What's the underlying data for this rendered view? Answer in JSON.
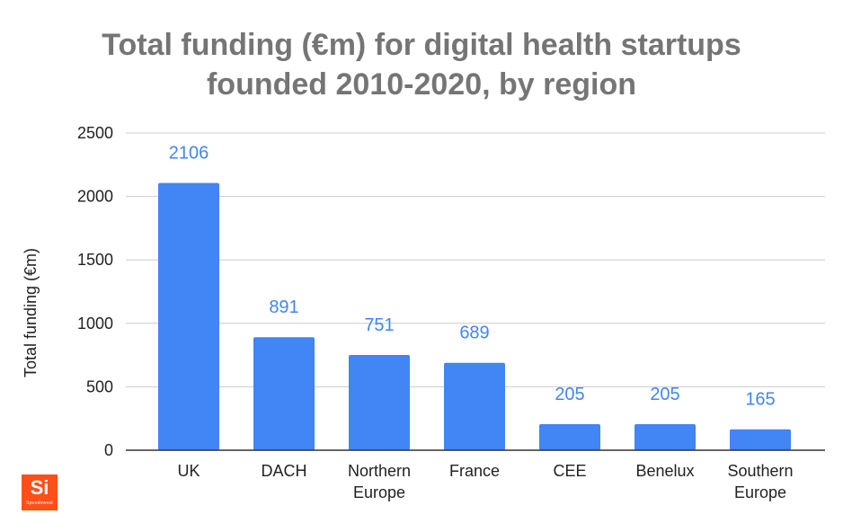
{
  "chart_data": {
    "type": "bar",
    "title": [
      "Total funding (€m) for digital health startups",
      "founded 2010-2020, by region"
    ],
    "xlabel": "",
    "ylabel": "Total funding (€m)",
    "ylim": [
      0,
      2500
    ],
    "yticks": [
      0,
      500,
      1000,
      1500,
      2000,
      2500
    ],
    "grid": true,
    "categories": [
      [
        "UK"
      ],
      [
        "DACH"
      ],
      [
        "Northern",
        "Europe"
      ],
      [
        "France"
      ],
      [
        "CEE"
      ],
      [
        "Benelux"
      ],
      [
        "Southern",
        "Europe"
      ]
    ],
    "values": [
      2106,
      891,
      751,
      689,
      205,
      205,
      165
    ],
    "data_labels": [
      "2106",
      "891",
      "751",
      "689",
      "205",
      "205",
      "165"
    ],
    "colors": {
      "bar": "#4285f4",
      "data_label": "#4285f4",
      "grid": "#cccccc",
      "axis": "#333333",
      "title": "#757575"
    }
  },
  "logo": {
    "mark": "Si",
    "wordmark": "Speedinvest",
    "color": "#ff4f18"
  }
}
